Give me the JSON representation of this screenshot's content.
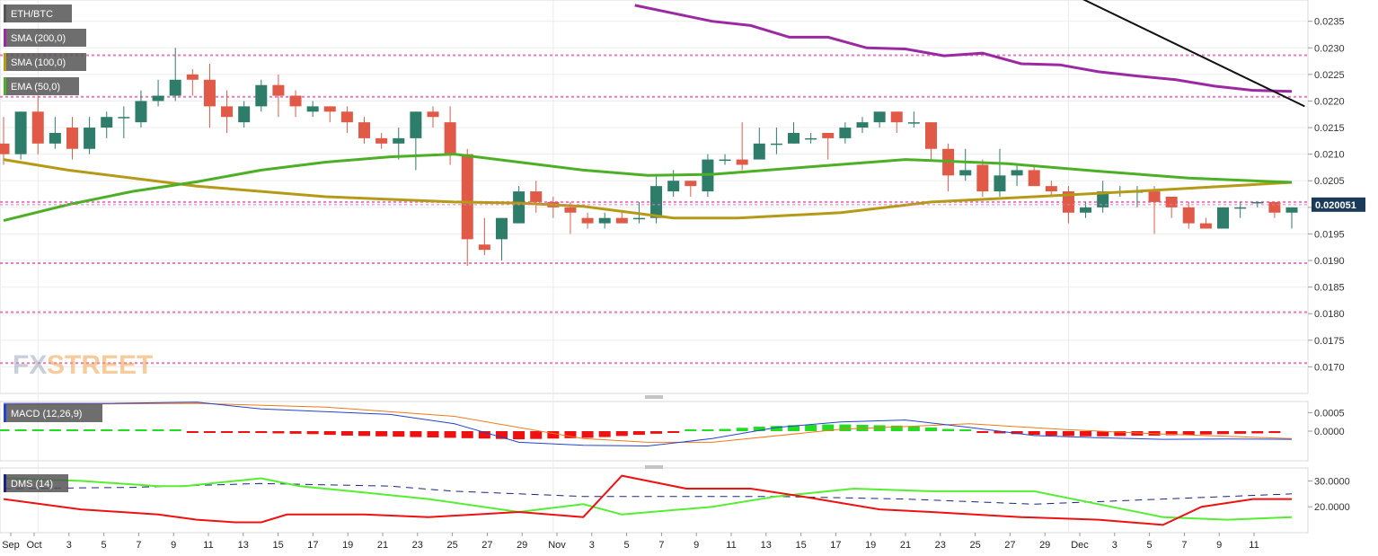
{
  "chart_data": {
    "type": "candlestick",
    "symbol": "ETH/BTC",
    "current_price": "0.020051",
    "legend": [
      "ETH/BTC",
      "SMA (200,0)",
      "SMA (100,0)",
      "EMA (50,0)"
    ],
    "macd_label": "MACD (12,26,9)",
    "dms_label": "DMS (14)",
    "watermark": {
      "a": "FX",
      "b": "STREET"
    },
    "x_labels": [
      "Sep",
      "Oct",
      "3",
      "5",
      "7",
      "9",
      "11",
      "13",
      "15",
      "17",
      "19",
      "21",
      "23",
      "25",
      "27",
      "29",
      "Nov",
      "3",
      "5",
      "7",
      "9",
      "11",
      "13",
      "15",
      "17",
      "19",
      "21",
      "23",
      "25",
      "27",
      "29",
      "Dec",
      "3",
      "5",
      "7",
      "9",
      "11"
    ],
    "ylim": [
      0.0165,
      0.0239
    ],
    "y_ticks": [
      "0.0235",
      "0.0230",
      "0.0225",
      "0.0220",
      "0.0215",
      "0.0210",
      "0.0205",
      "0.0200",
      "0.0195",
      "0.0190",
      "0.0185",
      "0.0180",
      "0.0175",
      "0.0170"
    ],
    "hlines": [
      0.02286,
      0.02208,
      0.0201,
      0.01895,
      0.01803,
      0.01707
    ],
    "candles": [
      [
        0.0212,
        0.0217,
        0.0208,
        0.021
      ],
      [
        0.021,
        0.0218,
        0.0209,
        0.0218
      ],
      [
        0.0218,
        0.0221,
        0.021,
        0.0212
      ],
      [
        0.0212,
        0.0217,
        0.0211,
        0.0214
      ],
      [
        0.0215,
        0.0217,
        0.0209,
        0.0211
      ],
      [
        0.0211,
        0.0217,
        0.021,
        0.0215
      ],
      [
        0.0215,
        0.0218,
        0.0213,
        0.0217
      ],
      [
        0.0217,
        0.0219,
        0.0213,
        0.0217
      ],
      [
        0.0216,
        0.0222,
        0.0215,
        0.022
      ],
      [
        0.022,
        0.0224,
        0.0219,
        0.0221
      ],
      [
        0.0221,
        0.023,
        0.022,
        0.0224
      ],
      [
        0.0225,
        0.0226,
        0.0221,
        0.0224
      ],
      [
        0.0224,
        0.0227,
        0.0215,
        0.0219
      ],
      [
        0.0219,
        0.0222,
        0.0214,
        0.0217
      ],
      [
        0.0216,
        0.022,
        0.0215,
        0.0219
      ],
      [
        0.0219,
        0.0224,
        0.0218,
        0.0223
      ],
      [
        0.0223,
        0.0225,
        0.0217,
        0.0221
      ],
      [
        0.0221,
        0.0222,
        0.0217,
        0.0219
      ],
      [
        0.0218,
        0.022,
        0.0217,
        0.0219
      ],
      [
        0.0219,
        0.0219,
        0.0216,
        0.0218
      ],
      [
        0.0218,
        0.0219,
        0.0214,
        0.0216
      ],
      [
        0.0216,
        0.0217,
        0.0212,
        0.0213
      ],
      [
        0.0213,
        0.0214,
        0.0211,
        0.0212
      ],
      [
        0.0212,
        0.0215,
        0.0209,
        0.0213
      ],
      [
        0.0213,
        0.0218,
        0.0207,
        0.0218
      ],
      [
        0.0218,
        0.0219,
        0.0215,
        0.0217
      ],
      [
        0.0216,
        0.0219,
        0.0208,
        0.021
      ],
      [
        0.021,
        0.0211,
        0.0189,
        0.0194
      ],
      [
        0.0193,
        0.0198,
        0.0191,
        0.0192
      ],
      [
        0.0194,
        0.0198,
        0.019,
        0.0198
      ],
      [
        0.0197,
        0.0204,
        0.0197,
        0.0203
      ],
      [
        0.0203,
        0.0205,
        0.0199,
        0.0201
      ],
      [
        0.0201,
        0.0202,
        0.0198,
        0.02
      ],
      [
        0.02,
        0.0201,
        0.0195,
        0.0199
      ],
      [
        0.0198,
        0.0199,
        0.0196,
        0.0197
      ],
      [
        0.0197,
        0.0199,
        0.0196,
        0.0198
      ],
      [
        0.0198,
        0.0199,
        0.0197,
        0.0197
      ],
      [
        0.0198,
        0.0201,
        0.0197,
        0.0198
      ],
      [
        0.0198,
        0.0206,
        0.0197,
        0.0204
      ],
      [
        0.0203,
        0.0207,
        0.0202,
        0.0205
      ],
      [
        0.0205,
        0.0205,
        0.0202,
        0.0204
      ],
      [
        0.0203,
        0.021,
        0.0202,
        0.0209
      ],
      [
        0.0209,
        0.021,
        0.0208,
        0.0209
      ],
      [
        0.0209,
        0.0216,
        0.0207,
        0.0208
      ],
      [
        0.0209,
        0.0215,
        0.0209,
        0.0212
      ],
      [
        0.0212,
        0.0215,
        0.021,
        0.0212
      ],
      [
        0.0212,
        0.0216,
        0.0212,
        0.0214
      ],
      [
        0.0213,
        0.0214,
        0.0212,
        0.0213
      ],
      [
        0.0214,
        0.0214,
        0.0209,
        0.0213
      ],
      [
        0.0213,
        0.0216,
        0.0212,
        0.0215
      ],
      [
        0.0215,
        0.0217,
        0.0214,
        0.0216
      ],
      [
        0.0216,
        0.0218,
        0.0215,
        0.0218
      ],
      [
        0.0218,
        0.0218,
        0.0214,
        0.0216
      ],
      [
        0.0216,
        0.0218,
        0.0215,
        0.0216
      ],
      [
        0.0216,
        0.0216,
        0.0209,
        0.0211
      ],
      [
        0.0211,
        0.0212,
        0.0203,
        0.0206
      ],
      [
        0.0206,
        0.0211,
        0.0205,
        0.0207
      ],
      [
        0.0208,
        0.0209,
        0.0202,
        0.0203
      ],
      [
        0.0203,
        0.0211,
        0.0202,
        0.0206
      ],
      [
        0.0206,
        0.0208,
        0.0204,
        0.0207
      ],
      [
        0.0207,
        0.0208,
        0.0204,
        0.0204
      ],
      [
        0.0204,
        0.0205,
        0.0202,
        0.0203
      ],
      [
        0.0203,
        0.0204,
        0.0197,
        0.0199
      ],
      [
        0.0199,
        0.0201,
        0.0198,
        0.02
      ],
      [
        0.02,
        0.0205,
        0.0199,
        0.0203
      ],
      [
        0.0203,
        0.0204,
        0.0202,
        0.0203
      ],
      [
        0.0203,
        0.0204,
        0.02,
        0.0203
      ],
      [
        0.0203,
        0.0204,
        0.0195,
        0.0201
      ],
      [
        0.0202,
        0.0202,
        0.0198,
        0.02
      ],
      [
        0.02,
        0.0201,
        0.0196,
        0.0197
      ],
      [
        0.0197,
        0.0198,
        0.0196,
        0.0196
      ],
      [
        0.0196,
        0.02,
        0.0196,
        0.02
      ],
      [
        0.02,
        0.0201,
        0.0198,
        0.02
      ],
      [
        0.0201,
        0.0201,
        0.02,
        0.0201
      ],
      [
        0.0201,
        0.0201,
        0.0198,
        0.0199
      ],
      [
        0.0199,
        0.02,
        0.0196,
        0.02
      ]
    ],
    "sma200": [
      [
        0.0238,
        0.02365
      ],
      [
        0.0235,
        0.02342
      ],
      [
        0.0232,
        0.0232
      ],
      [
        0.023,
        0.02298
      ],
      [
        0.02285,
        0.0229
      ],
      [
        0.0227,
        0.02268
      ],
      [
        0.02255,
        0.02247
      ],
      [
        0.0224,
        0.02228
      ],
      [
        0.0222,
        0.02218
      ]
    ],
    "sma100": [
      [
        0.0,
        0.0209
      ],
      [
        0.05,
        0.0207
      ],
      [
        0.15,
        0.0204
      ],
      [
        0.25,
        0.0202
      ],
      [
        0.35,
        0.0201
      ],
      [
        0.4,
        0.02008
      ],
      [
        0.45,
        0.02002
      ],
      [
        0.52,
        0.0198
      ],
      [
        0.57,
        0.0198
      ],
      [
        0.65,
        0.0199
      ],
      [
        0.72,
        0.0201
      ],
      [
        0.8,
        0.0202
      ],
      [
        0.9,
        0.02033
      ],
      [
        1.0,
        0.02047
      ]
    ],
    "ema50": [
      [
        0.0,
        0.01975
      ],
      [
        0.05,
        0.02005
      ],
      [
        0.1,
        0.0203
      ],
      [
        0.15,
        0.02048
      ],
      [
        0.2,
        0.0207
      ],
      [
        0.25,
        0.02085
      ],
      [
        0.3,
        0.02095
      ],
      [
        0.35,
        0.021
      ],
      [
        0.4,
        0.02085
      ],
      [
        0.45,
        0.0207
      ],
      [
        0.5,
        0.0206
      ],
      [
        0.55,
        0.02062
      ],
      [
        0.62,
        0.02075
      ],
      [
        0.7,
        0.0209
      ],
      [
        0.78,
        0.02082
      ],
      [
        0.85,
        0.02068
      ],
      [
        0.92,
        0.02055
      ],
      [
        1.0,
        0.02047
      ]
    ],
    "trendline": [
      [
        0.0243,
        0.0219
      ]
    ],
    "macd": {
      "y_ticks": [
        "0.0005",
        "0.0000"
      ],
      "ylim": [
        -0.0008,
        0.0008
      ],
      "macd_line": [
        [
          0.0,
          0.00075
        ],
        [
          0.08,
          0.00075
        ],
        [
          0.15,
          0.00078
        ],
        [
          0.2,
          0.0006
        ],
        [
          0.3,
          0.00045
        ],
        [
          0.35,
          0.0002
        ],
        [
          0.4,
          -0.0003
        ],
        [
          0.45,
          -0.00038
        ],
        [
          0.5,
          -0.0004
        ],
        [
          0.55,
          -0.0002
        ],
        [
          0.6,
          0.0001
        ],
        [
          0.65,
          0.00025
        ],
        [
          0.7,
          0.0003
        ],
        [
          0.75,
          0.0001
        ],
        [
          0.8,
          -0.00012
        ],
        [
          0.85,
          -0.00018
        ],
        [
          0.9,
          -0.00022
        ],
        [
          0.95,
          -0.00021
        ],
        [
          1.0,
          -0.00022
        ]
      ],
      "signal_line": [
        [
          0.0,
          0.00072
        ],
        [
          0.15,
          0.00075
        ],
        [
          0.25,
          0.00065
        ],
        [
          0.35,
          0.0004
        ],
        [
          0.45,
          -0.0002
        ],
        [
          0.5,
          -0.0003
        ],
        [
          0.55,
          -0.0003
        ],
        [
          0.65,
          5e-05
        ],
        [
          0.75,
          0.0002
        ],
        [
          0.82,
          5e-05
        ],
        [
          0.9,
          -8e-05
        ],
        [
          1.0,
          -0.0002
        ]
      ],
      "histogram": [
        2e-05,
        3e-05,
        2e-05,
        1e-05,
        0,
        0,
        0,
        1e-05,
        1e-05,
        2e-05,
        1e-05,
        -2e-05,
        -2e-05,
        -3e-05,
        -4e-05,
        -5e-05,
        -6e-05,
        -7e-05,
        -8e-05,
        -0.0001,
        -0.00012,
        -0.00013,
        -0.00014,
        -0.00015,
        -0.00016,
        -0.00017,
        -0.00018,
        -0.00019,
        -0.0002,
        -0.00021,
        -0.00022,
        -0.00021,
        -0.0002,
        -0.00019,
        -0.00018,
        -0.00016,
        -0.00013,
        -0.0001,
        -7e-05,
        -3e-05,
        0,
        3e-05,
        6e-05,
        9e-05,
        0.00012,
        0.00014,
        0.00016,
        0.00017,
        0.00018,
        0.00018,
        0.00017,
        0.00016,
        0.00015,
        0.00013,
        0.0001,
        6e-05,
        2e-05,
        -3e-05,
        -6e-05,
        -8e-05,
        -0.0001,
        -0.00012,
        -0.00013,
        -0.00014,
        -0.00014,
        -0.00013,
        -0.00012,
        -0.00012,
        -0.00011,
        -0.0001,
        -9e-05,
        -8e-05,
        -7e-05,
        -6e-05,
        -5e-05
      ]
    },
    "dms": {
      "y_ticks": [
        "30.0000",
        "20.0000"
      ],
      "ylim": [
        10,
        35
      ],
      "adx": [
        [
          0.0,
          27
        ],
        [
          0.1,
          27.5
        ],
        [
          0.2,
          29
        ],
        [
          0.3,
          28
        ],
        [
          0.35,
          26
        ],
        [
          0.45,
          24
        ],
        [
          0.6,
          24
        ],
        [
          0.7,
          23
        ],
        [
          0.8,
          21
        ],
        [
          0.9,
          23
        ],
        [
          1.0,
          25
        ]
      ],
      "plus_di": [
        [
          0.0,
          31
        ],
        [
          0.06,
          30
        ],
        [
          0.12,
          28
        ],
        [
          0.14,
          28
        ],
        [
          0.2,
          31
        ],
        [
          0.23,
          28
        ],
        [
          0.27,
          26
        ],
        [
          0.33,
          23
        ],
        [
          0.4,
          18
        ],
        [
          0.45,
          21
        ],
        [
          0.48,
          17
        ],
        [
          0.55,
          20
        ],
        [
          0.6,
          24
        ],
        [
          0.66,
          27
        ],
        [
          0.72,
          26
        ],
        [
          0.8,
          26
        ],
        [
          0.86,
          20
        ],
        [
          0.9,
          16
        ],
        [
          0.95,
          15
        ],
        [
          1.0,
          16
        ]
      ],
      "minus_di": [
        [
          0.0,
          23
        ],
        [
          0.06,
          19
        ],
        [
          0.12,
          17
        ],
        [
          0.15,
          15
        ],
        [
          0.18,
          14
        ],
        [
          0.2,
          14
        ],
        [
          0.22,
          17
        ],
        [
          0.28,
          17
        ],
        [
          0.33,
          16
        ],
        [
          0.4,
          18
        ],
        [
          0.45,
          16
        ],
        [
          0.48,
          32
        ],
        [
          0.53,
          27
        ],
        [
          0.58,
          27
        ],
        [
          0.62,
          24
        ],
        [
          0.68,
          19
        ],
        [
          0.72,
          18
        ],
        [
          0.79,
          16
        ],
        [
          0.85,
          15
        ],
        [
          0.9,
          13
        ],
        [
          0.93,
          20
        ],
        [
          0.97,
          23
        ],
        [
          1.0,
          23
        ]
      ]
    }
  }
}
